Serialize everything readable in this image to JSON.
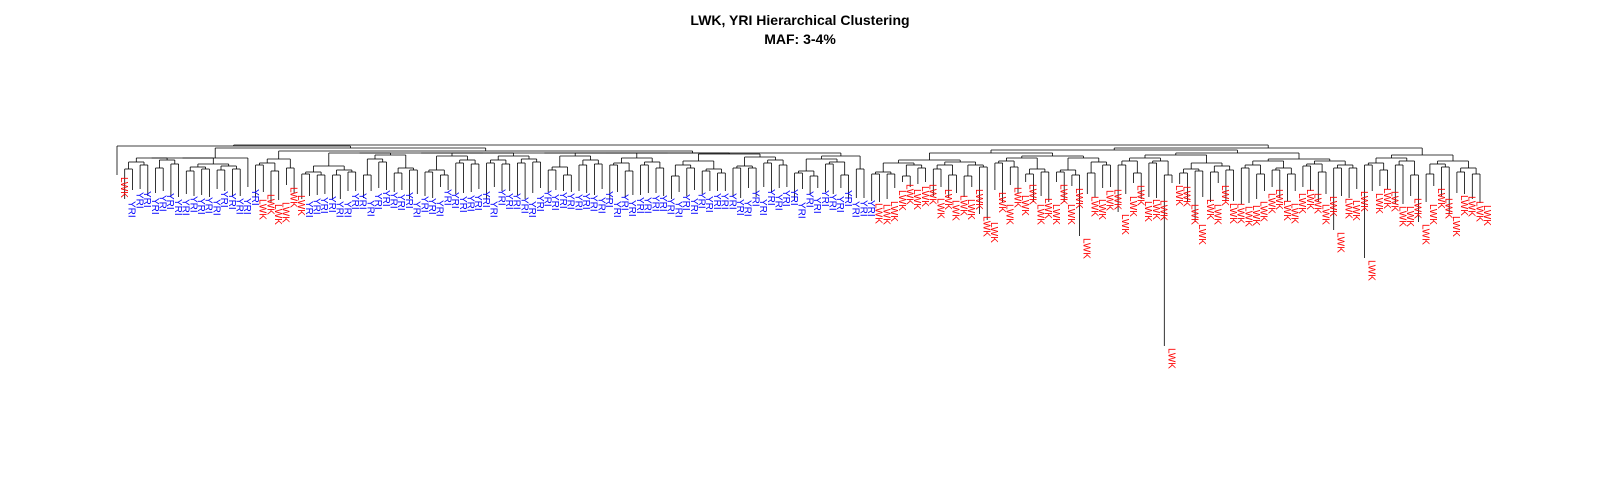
{
  "chart_data": {
    "type": "dendrogram",
    "title": "LWK, YRI Hierarchical Clustering",
    "subtitle": "MAF: 3-4%",
    "xlabel": "",
    "ylabel": "",
    "legend": "none",
    "grid": false,
    "series": [
      {
        "label": "LWK",
        "color": "#ff0000"
      },
      {
        "label": "YRI",
        "color": "#0000ff"
      }
    ],
    "leaves": [
      {
        "label": "LWK",
        "group": "LWK"
      },
      {
        "label": "YRI",
        "group": "YRI",
        "count": 17
      },
      {
        "label": "LWK",
        "group": "LWK",
        "count": 6
      },
      {
        "label": "YRI",
        "group": "YRI",
        "count": 74
      },
      {
        "label": "LWK",
        "group": "LWK",
        "count": 80
      }
    ]
  }
}
